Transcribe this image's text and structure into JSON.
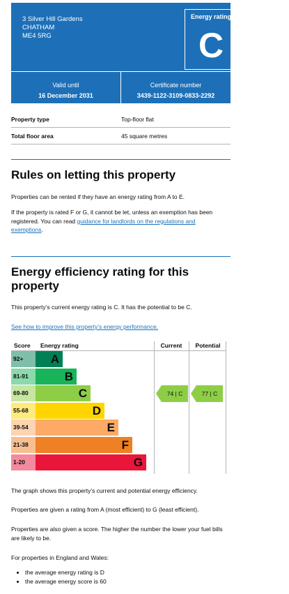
{
  "header": {
    "address_lines": [
      "3 Silver Hill Gardens",
      "CHATHAM",
      "ME4 5RG"
    ],
    "energy_rating_label": "Energy rating",
    "energy_rating": "C",
    "valid_until_label": "Valid until",
    "valid_until": "16 December 2031",
    "certificate_label": "Certificate number",
    "certificate_number": "3439-1122-3109-0833-2292"
  },
  "summary": [
    {
      "label": "Property type",
      "value": "Top-floor flat"
    },
    {
      "label": "Total floor area",
      "value": "45 square metres"
    }
  ],
  "rules": {
    "title": "Rules on letting this property",
    "p1": "Properties can be rented if they have an energy rating from A to E.",
    "p2_a": "If the property is rated F or G, it cannot be let, unless an exemption has been registered. You can read ",
    "p2_link": "guidance for landlords on the regulations and exemptions",
    "p2_b": "."
  },
  "efficiency": {
    "title": "Energy efficiency rating for this property",
    "p1": "This property’s current energy rating is C. It has the potential to be C.",
    "link": "See how to improve this property’s energy performance."
  },
  "chart_data": {
    "type": "table",
    "columns": [
      "Score",
      "Energy rating",
      "Current",
      "Potential"
    ],
    "bands": [
      {
        "score": "92+",
        "letter": "A",
        "color": "#008054",
        "score_bg": "#7fbfa9"
      },
      {
        "score": "81-91",
        "letter": "B",
        "color": "#19b459",
        "score_bg": "#8cd9ac"
      },
      {
        "score": "69-80",
        "letter": "C",
        "color": "#8dce46",
        "score_bg": "#c6e6a2"
      },
      {
        "score": "55-68",
        "letter": "D",
        "color": "#ffd500",
        "score_bg": "#ffea7f"
      },
      {
        "score": "39-54",
        "letter": "E",
        "color": "#fcaa65",
        "score_bg": "#fdd4b2"
      },
      {
        "score": "21-38",
        "letter": "F",
        "color": "#ef8023",
        "score_bg": "#f7bf91"
      },
      {
        "score": "1-20",
        "letter": "G",
        "color": "#e9153b",
        "score_bg": "#f48a9d"
      }
    ],
    "current": {
      "score": 74,
      "rating": "C",
      "text": "74 | C"
    },
    "potential": {
      "score": 77,
      "rating": "C",
      "text": "77 | C"
    }
  },
  "explanation": {
    "p1": "The graph shows this property’s current and potential energy efficiency.",
    "p2": "Properties are given a rating from A (most efficient) to G (least efficient).",
    "p3": "Properties are also given a score. The higher the number the lower your fuel bills are likely to be.",
    "p4": "For properties in England and Wales:",
    "bullets": [
      "the average energy rating is D",
      "the average energy score is 60"
    ]
  }
}
